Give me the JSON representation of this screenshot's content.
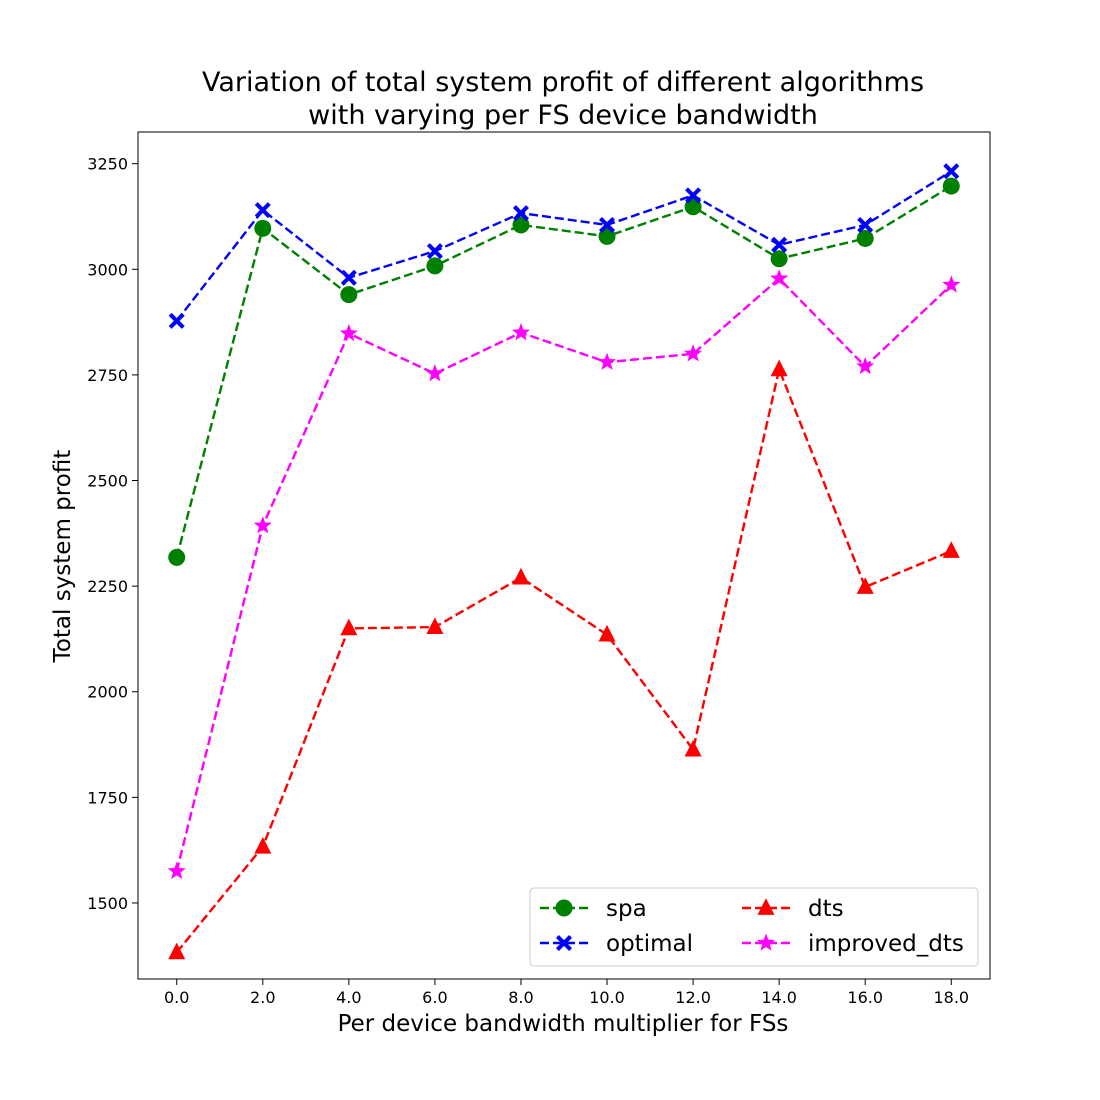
{
  "chart_data": {
    "type": "line",
    "title_lines": [
      "Variation of total system profit of different algorithms",
      "with varying per FS device bandwidth"
    ],
    "xlabel": "Per device bandwidth multiplier for FSs",
    "ylabel": "Total system profit",
    "x": [
      0,
      2,
      4,
      6,
      8,
      10,
      12,
      14,
      16,
      18
    ],
    "x_tick_labels": [
      "0.0",
      "2.0",
      "4.0",
      "6.0",
      "8.0",
      "10.0",
      "12.0",
      "14.0",
      "16.0",
      "18.0"
    ],
    "xlim": [
      -0.9,
      18.9
    ],
    "ylim": [
      1320,
      3325
    ],
    "y_ticks": [
      1500,
      1750,
      2000,
      2250,
      2500,
      2750,
      3000,
      3250
    ],
    "grid": false,
    "legend": {
      "placement": "lower-right",
      "columns": 2
    },
    "series": [
      {
        "name": "spa",
        "color": "#008000",
        "marker": "circle",
        "values": [
          2318,
          3097,
          2940,
          3008,
          3105,
          3078,
          3148,
          3025,
          3073,
          3197
        ]
      },
      {
        "name": "optimal",
        "color": "#0000ff",
        "marker": "x",
        "values": [
          2878,
          3140,
          2980,
          3043,
          3133,
          3105,
          3175,
          3058,
          3105,
          3232
        ]
      },
      {
        "name": "dts",
        "color": "#ff0000",
        "marker": "triangle",
        "values": [
          1383,
          1633,
          2150,
          2153,
          2270,
          2135,
          1863,
          2763,
          2248,
          2333
        ]
      },
      {
        "name": "improved_dts",
        "color": "#ff00ff",
        "marker": "star",
        "values": [
          1575,
          2393,
          2848,
          2753,
          2850,
          2780,
          2800,
          2978,
          2770,
          2963
        ]
      }
    ]
  }
}
